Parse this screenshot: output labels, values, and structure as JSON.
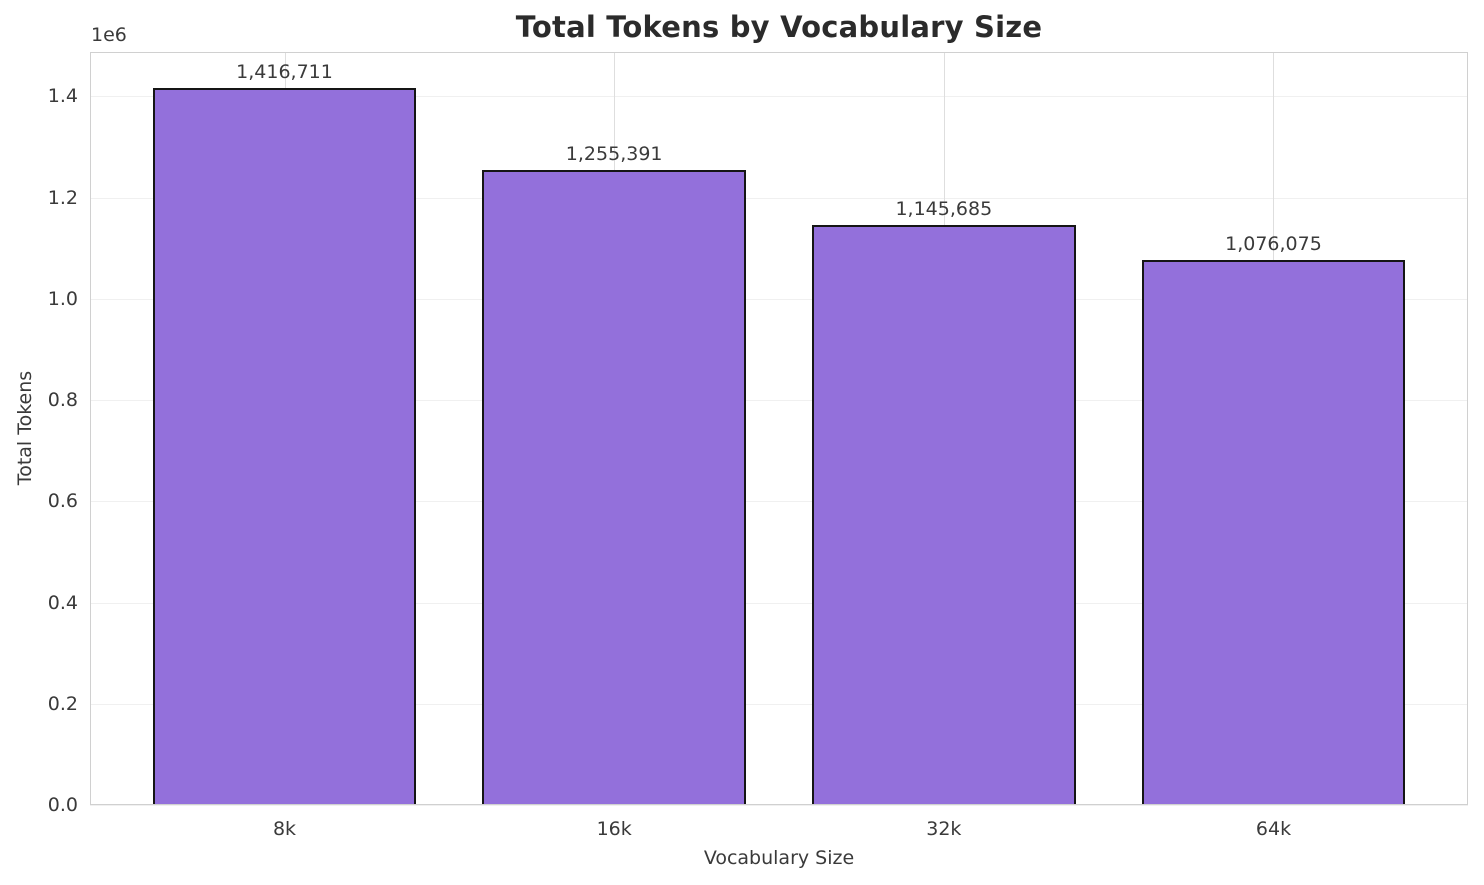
{
  "chart_data": {
    "type": "bar",
    "title": "Total Tokens by Vocabulary Size",
    "xlabel": "Vocabulary Size",
    "ylabel": "Total Tokens",
    "y_offset_label": "1e6",
    "categories": [
      "8k",
      "16k",
      "32k",
      "64k"
    ],
    "values": [
      1416711,
      1255391,
      1145685,
      1076075
    ],
    "bar_labels": [
      "1,416,711",
      "1,255,391",
      "1,145,685",
      "1,076,075"
    ],
    "ylim": [
      0,
      1487547
    ],
    "y_ticks": [
      0,
      200000,
      400000,
      600000,
      800000,
      1000000,
      1200000,
      1400000
    ],
    "y_tick_labels": [
      "0.0",
      "0.2",
      "0.4",
      "0.6",
      "0.8",
      "1.0",
      "1.2",
      "1.4"
    ],
    "grid": true,
    "legend": "none",
    "colors": {
      "bar_fill": "#9370DB",
      "bar_edge": "#151515",
      "grid_horizontal": "#f0f0f0",
      "grid_vertical": "#dedede",
      "spine": "#d0d0d0",
      "title_text": "#2b2b2b",
      "label_text": "#3a3a3a"
    }
  }
}
